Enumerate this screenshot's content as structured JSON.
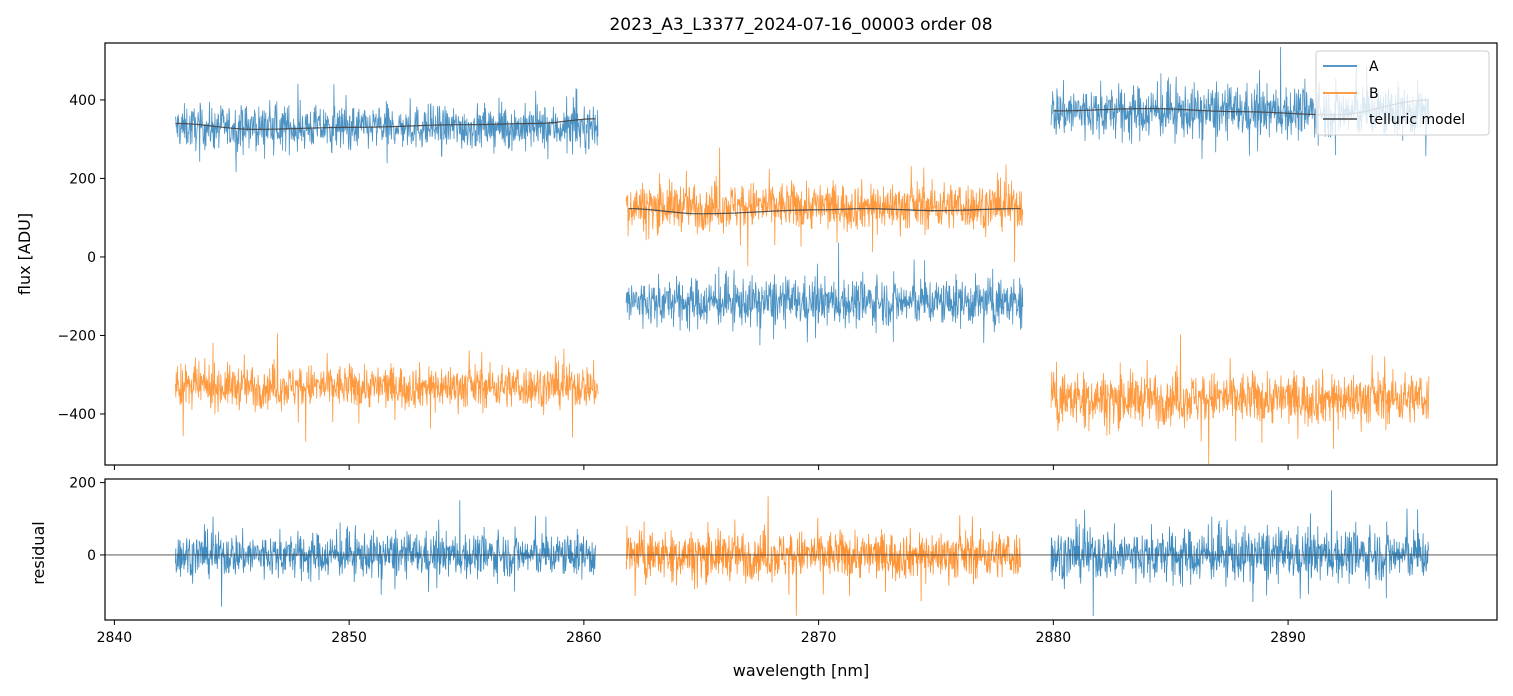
{
  "chart_data": [
    {
      "type": "line",
      "title": "2023_A3_L3377_2024-07-16_00003  order 08",
      "xlabel": "",
      "ylabel": "flux [ADU]",
      "xlim": [
        2839.6,
        2898.9
      ],
      "ylim": [
        -530,
        545
      ],
      "yticks": [
        400,
        200,
        0,
        -200,
        -400
      ],
      "ytick_labels": [
        "400",
        "200",
        "0",
        "−200",
        "−400"
      ],
      "xticks": [
        2840,
        2850,
        2860,
        2870,
        2880,
        2890
      ],
      "legend": {
        "position": "top-right",
        "entries": [
          "A",
          "B",
          "telluric model"
        ]
      },
      "segments": [
        {
          "x_range": [
            2842.6,
            2860.6
          ],
          "A_level": 330,
          "B_level": -330,
          "noise": 50,
          "model_series": "A",
          "model": [
            [
              2842.6,
              340
            ],
            [
              2846,
              325
            ],
            [
              2850,
              330
            ],
            [
              2855,
              337
            ],
            [
              2858,
              340
            ],
            [
              2860.5,
              352
            ]
          ]
        },
        {
          "x_range": [
            2861.8,
            2878.7
          ],
          "A_level": -115,
          "B_level": 130,
          "noise": 55,
          "model_series": "B",
          "model": [
            [
              2861.9,
              123
            ],
            [
              2865,
              110
            ],
            [
              2870,
              120
            ],
            [
              2872,
              123
            ],
            [
              2875,
              118
            ],
            [
              2878.6,
              123
            ]
          ]
        },
        {
          "x_range": [
            2879.9,
            2896.0
          ],
          "A_level": 370,
          "B_level": -360,
          "noise": 60,
          "model_series": "A",
          "model": [
            [
              2880,
              372
            ],
            [
              2884,
              378
            ],
            [
              2888,
              370
            ],
            [
              2892,
              362
            ],
            [
              2896,
              400
            ]
          ]
        }
      ],
      "series": [
        {
          "name": "A",
          "color": "#1f77b4"
        },
        {
          "name": "B",
          "color": "#ff7f0e"
        },
        {
          "name": "telluric model",
          "color": "#444444"
        }
      ]
    },
    {
      "type": "line",
      "title": "",
      "xlabel": "wavelength [nm]",
      "ylabel": "residual",
      "xlim": [
        2839.6,
        2898.9
      ],
      "ylim": [
        -180,
        210
      ],
      "yticks": [
        200,
        0
      ],
      "ytick_labels": [
        "200",
        "0"
      ],
      "xticks": [
        2840,
        2850,
        2860,
        2870,
        2880,
        2890
      ],
      "xtick_labels": [
        "2840",
        "2850",
        "2860",
        "2870",
        "2880",
        "2890"
      ],
      "zero_line": 0,
      "segments": [
        {
          "x_range": [
            2842.6,
            2860.5
          ],
          "series": "A",
          "noise": 55
        },
        {
          "x_range": [
            2861.8,
            2878.6
          ],
          "series": "B",
          "noise": 60
        },
        {
          "x_range": [
            2879.9,
            2896.0
          ],
          "series": "A",
          "noise": 65
        }
      ]
    }
  ]
}
